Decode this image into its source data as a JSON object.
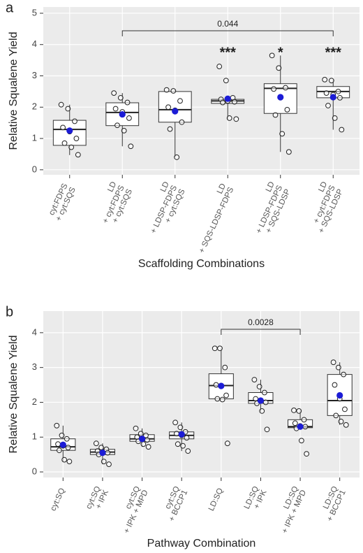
{
  "chart_data": [
    {
      "type": "box",
      "panel_label": "a",
      "ylabel": "Relative Squalene Yield",
      "xlabel": "Scaffolding Combinations",
      "categories": [
        [
          "cyt:FDPS",
          "+ cyt:SQS"
        ],
        [
          "LD",
          "+ cyt:FDPS",
          "+ cyt:SQS"
        ],
        [
          "LD",
          "+ LDSP-FDPS",
          "+ cyt:SQS"
        ],
        [
          "LD",
          "+ SQS-LDSP-FDPS"
        ],
        [
          "LD",
          "+ LDSP-FDPS",
          "+ SQS-LDSP"
        ],
        [
          "LD",
          "+ cyt:FDPS",
          "+ SQS-LDSP"
        ]
      ],
      "boxes": [
        {
          "min": 0.47,
          "q1": 0.78,
          "median": 1.29,
          "q3": 1.58,
          "max": 2.08,
          "mean": 1.25,
          "points": [
            2.08,
            1.95,
            1.55,
            1.35,
            1.22,
            1.0,
            0.85,
            0.72,
            0.48
          ]
        },
        {
          "min": 0.75,
          "q1": 1.41,
          "median": 1.83,
          "q3": 2.14,
          "max": 2.45,
          "mean": 1.77,
          "points": [
            2.45,
            2.3,
            2.15,
            1.95,
            1.85,
            1.65,
            1.42,
            1.25,
            0.75
          ]
        },
        {
          "min": 0.4,
          "q1": 1.52,
          "median": 1.92,
          "q3": 2.5,
          "max": 2.55,
          "mean": 1.87,
          "points": [
            2.55,
            2.52,
            2.2,
            2.0,
            1.9,
            1.52,
            1.3,
            0.4
          ]
        },
        {
          "min": 1.62,
          "q1": 2.12,
          "median": 2.2,
          "q3": 2.25,
          "max": 2.3,
          "mean": 2.27,
          "points": [
            3.3,
            2.85,
            2.3,
            2.25,
            2.2,
            2.17,
            2.15,
            1.65,
            1.62
          ]
        },
        {
          "min": 0.57,
          "q1": 1.8,
          "median": 2.6,
          "q3": 2.75,
          "max": 3.65,
          "mean": 2.32,
          "points": [
            3.65,
            3.25,
            2.62,
            2.58,
            2.3,
            1.92,
            1.75,
            1.15,
            0.57
          ]
        },
        {
          "min": 1.28,
          "q1": 2.3,
          "median": 2.5,
          "q3": 2.66,
          "max": 2.88,
          "mean": 2.32,
          "points": [
            2.88,
            2.85,
            2.5,
            2.45,
            2.4,
            2.3,
            2.05,
            1.65,
            1.28
          ]
        }
      ],
      "significance": [
        null,
        null,
        null,
        "***",
        "*",
        "***"
      ],
      "comparison": {
        "categories": [
          1,
          5
        ],
        "label": "0.044"
      },
      "ylim": [
        -0.16,
        5.2
      ],
      "yticks": [
        0,
        1,
        2,
        3,
        4,
        5
      ],
      "grid": true,
      "panel_color": "#ebebeb",
      "box_color": "#ffffff",
      "point_color": "#ffffff",
      "mean_color": "#1c1cd6"
    },
    {
      "type": "box",
      "panel_label": "b",
      "ylabel": "Relative Squalene Yield",
      "xlabel": "Pathway Combination",
      "categories": [
        [
          "cyt:SQ"
        ],
        [
          "cyt:SQ",
          "+ IPK"
        ],
        [
          "cyt:SQ",
          "+ IPK + MPD"
        ],
        [
          "cyt:SQ",
          "+ BCCP1"
        ],
        [
          "LD:SQ"
        ],
        [
          "LD:SQ",
          "+ IPK"
        ],
        [
          "LD:SQ",
          "+ IPK + MPD"
        ],
        [
          "LD:SQ",
          "+ BCCP1"
        ]
      ],
      "boxes": [
        {
          "min": 0.3,
          "q1": 0.62,
          "median": 0.72,
          "q3": 0.95,
          "max": 1.33,
          "mean": 0.78,
          "points": [
            1.33,
            1.05,
            0.95,
            0.8,
            0.75,
            0.7,
            0.62,
            0.35,
            0.3
          ]
        },
        {
          "min": 0.22,
          "q1": 0.5,
          "median": 0.57,
          "q3": 0.65,
          "max": 0.82,
          "mean": 0.55,
          "points": [
            0.82,
            0.7,
            0.65,
            0.6,
            0.57,
            0.55,
            0.5,
            0.3,
            0.22
          ]
        },
        {
          "min": 0.72,
          "q1": 0.88,
          "median": 0.95,
          "q3": 1.07,
          "max": 1.25,
          "mean": 0.95,
          "points": [
            1.25,
            1.1,
            1.05,
            1.0,
            0.95,
            0.92,
            0.88,
            0.8,
            0.72
          ]
        },
        {
          "min": 0.6,
          "q1": 0.95,
          "median": 1.05,
          "q3": 1.15,
          "max": 1.42,
          "mean": 1.08,
          "points": [
            1.42,
            1.28,
            1.15,
            1.1,
            1.05,
            0.98,
            0.8,
            0.75,
            0.6
          ]
        },
        {
          "min": 2.08,
          "q1": 2.1,
          "median": 2.48,
          "q3": 2.82,
          "max": 3.55,
          "mean": 2.47,
          "points": [
            3.55,
            3.55,
            3.0,
            2.5,
            2.48,
            2.2,
            2.1,
            2.08,
            0.82
          ]
        },
        {
          "min": 1.72,
          "q1": 1.97,
          "median": 2.05,
          "q3": 2.28,
          "max": 2.65,
          "mean": 2.05,
          "points": [
            2.65,
            2.45,
            2.28,
            2.1,
            2.05,
            2.0,
            1.97,
            1.75,
            1.22
          ]
        },
        {
          "min": 1.25,
          "q1": 1.27,
          "median": 1.3,
          "q3": 1.5,
          "max": 1.77,
          "mean": 1.3,
          "points": [
            1.77,
            1.75,
            1.5,
            1.4,
            1.32,
            1.3,
            1.25,
            0.9,
            0.52
          ]
        },
        {
          "min": 1.35,
          "q1": 1.62,
          "median": 2.05,
          "q3": 2.8,
          "max": 3.15,
          "mean": 2.2,
          "points": [
            3.15,
            3.0,
            2.8,
            2.5,
            2.1,
            1.8,
            1.62,
            1.45,
            1.35
          ]
        }
      ],
      "significance": [
        null,
        null,
        null,
        null,
        null,
        null,
        null,
        null
      ],
      "comparison": {
        "categories": [
          4,
          6
        ],
        "label": "0.0028"
      },
      "ylim": [
        -0.16,
        4.62
      ],
      "yticks": [
        0,
        1,
        2,
        3,
        4
      ],
      "grid": true,
      "panel_color": "#ebebeb",
      "box_color": "#ffffff",
      "point_color": "#ffffff",
      "mean_color": "#1c1cd6"
    }
  ]
}
